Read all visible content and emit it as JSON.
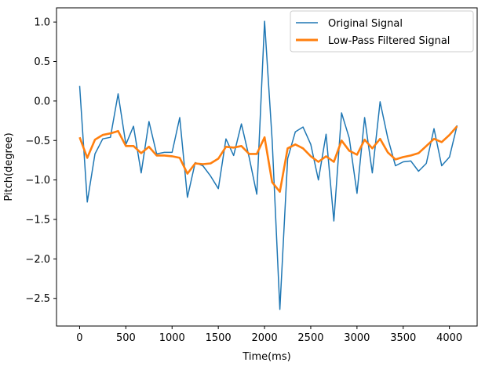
{
  "chart_data": {
    "type": "line",
    "xlabel": "Time(ms)",
    "ylabel": "Pitch(degree)",
    "xlim": [
      -250,
      4300
    ],
    "ylim": [
      -2.85,
      1.18
    ],
    "x_ticks": [
      0,
      500,
      1000,
      1500,
      2000,
      2500,
      3000,
      3500,
      4000
    ],
    "y_ticks": [
      -2.5,
      -2.0,
      -1.5,
      -1.0,
      -0.5,
      0.0,
      0.5,
      1.0
    ],
    "y_tick_labels": [
      "−2.5",
      "−2.0",
      "−1.5",
      "−1.0",
      "−0.5",
      "0.0",
      "0.5",
      "1.0"
    ],
    "legend_position": "upper-right",
    "x": [
      0,
      83,
      166,
      250,
      333,
      416,
      500,
      583,
      666,
      750,
      833,
      916,
      1000,
      1083,
      1166,
      1250,
      1333,
      1416,
      1500,
      1583,
      1666,
      1750,
      1833,
      1916,
      2000,
      2083,
      2166,
      2250,
      2333,
      2416,
      2500,
      2583,
      2666,
      2750,
      2833,
      2916,
      3000,
      3083,
      3166,
      3250,
      3333,
      3416,
      3500,
      3583,
      3666,
      3750,
      3833,
      3916,
      4000,
      4083
    ],
    "series": [
      {
        "name": "Original Signal",
        "color": "#1f77b4",
        "values": [
          0.19,
          -1.28,
          -0.67,
          -0.48,
          -0.46,
          0.09,
          -0.55,
          -0.32,
          -0.91,
          -0.26,
          -0.67,
          -0.65,
          -0.65,
          -0.21,
          -1.22,
          -0.78,
          -0.82,
          -0.95,
          -1.11,
          -0.48,
          -0.69,
          -0.29,
          -0.71,
          -1.18,
          1.01,
          -0.5,
          -2.64,
          -0.73,
          -0.39,
          -0.33,
          -0.55,
          -1.0,
          -0.42,
          -1.52,
          -0.15,
          -0.47,
          -1.17,
          -0.21,
          -0.91,
          -0.01,
          -0.47,
          -0.82,
          -0.77,
          -0.76,
          -0.89,
          -0.79,
          -0.35,
          -0.82,
          -0.71,
          -0.31
        ]
      },
      {
        "name": "Low-Pass Filtered Signal",
        "color": "#ff7f0e",
        "values": [
          -0.46,
          -0.72,
          -0.49,
          -0.43,
          -0.41,
          -0.38,
          -0.57,
          -0.57,
          -0.66,
          -0.58,
          -0.69,
          -0.69,
          -0.7,
          -0.72,
          -0.92,
          -0.79,
          -0.8,
          -0.79,
          -0.73,
          -0.58,
          -0.59,
          -0.57,
          -0.67,
          -0.67,
          -0.46,
          -1.03,
          -1.15,
          -0.6,
          -0.55,
          -0.6,
          -0.7,
          -0.77,
          -0.7,
          -0.77,
          -0.5,
          -0.63,
          -0.68,
          -0.49,
          -0.6,
          -0.48,
          -0.65,
          -0.74,
          -0.71,
          -0.69,
          -0.66,
          -0.57,
          -0.48,
          -0.52,
          -0.43,
          -0.32
        ]
      }
    ]
  }
}
